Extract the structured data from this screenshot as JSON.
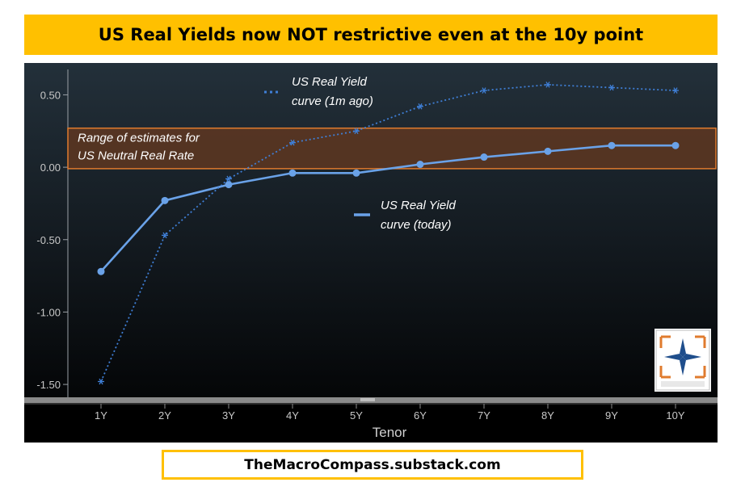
{
  "title": "US Real Yields now NOT restrictive even at the 10y point",
  "footer": "TheMacroCompass.substack.com",
  "colors": {
    "title_bg": "#ffc000",
    "line_today": "#6aa2e8",
    "line_1m": "#3f7fd6",
    "band_fill": "#6b3a1e",
    "band_stroke": "#e07b2e",
    "axis_text": "#c8c8c8"
  },
  "chart_data": {
    "type": "line",
    "categories": [
      "1Y",
      "2Y",
      "3Y",
      "4Y",
      "5Y",
      "6Y",
      "7Y",
      "8Y",
      "9Y",
      "10Y"
    ],
    "xlabel": "Tenor",
    "ylabel": "",
    "ylim": [
      -1.6,
      0.72
    ],
    "yticks": [
      0.5,
      0.0,
      -0.5,
      -1.0,
      -1.5
    ],
    "ytick_labels": [
      "0.50",
      "0.00",
      "-0.50",
      "-1.00",
      "-1.50"
    ],
    "grid": false,
    "series": [
      {
        "name": "US Real Yield curve (today)",
        "style": "solid",
        "marker": "dot",
        "values": [
          -0.72,
          -0.23,
          -0.12,
          -0.04,
          -0.04,
          0.02,
          0.07,
          0.11,
          0.15,
          0.15
        ]
      },
      {
        "name": "US Real Yield curve (1m ago)",
        "style": "dotted",
        "marker": "star",
        "values": [
          -1.48,
          -0.47,
          -0.08,
          0.17,
          0.25,
          0.42,
          0.53,
          0.57,
          0.55,
          0.53
        ]
      }
    ],
    "bands": [
      {
        "label_lines": [
          "Range of estimates for",
          "US Neutral Real Rate"
        ],
        "y_range": [
          -0.01,
          0.27
        ]
      }
    ],
    "legend_labels": {
      "one_month_lines": [
        "US Real Yield",
        "curve (1m ago)"
      ],
      "today_lines": [
        "US Real Yield",
        "curve (today)"
      ]
    }
  }
}
